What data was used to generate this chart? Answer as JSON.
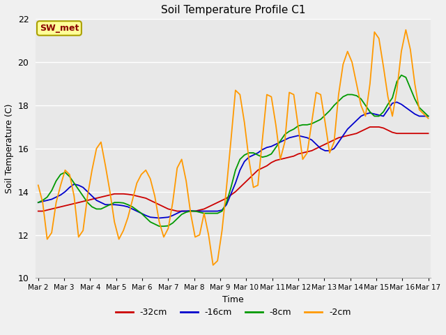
{
  "title": "Soil Temperature Profile C1",
  "xlabel": "Time",
  "ylabel": "Soil Temperature (C)",
  "ylim": [
    10,
    22
  ],
  "annotation": "SW_met",
  "plot_bg_color": "#e8e8e8",
  "fig_bg_color": "#f0f0f0",
  "legend_labels": [
    "-32cm",
    "-16cm",
    "-8cm",
    "-2cm"
  ],
  "legend_colors": [
    "#cc0000",
    "#0000cc",
    "#009900",
    "#ff9900"
  ],
  "xtick_labels": [
    "Mar 2",
    "Mar 3",
    "Mar 4",
    "Mar 5",
    "Mar 6",
    "Mar 7",
    "Mar 8",
    "Mar 9",
    "Mar 10",
    "Mar 11",
    "Mar 12",
    "Mar 13",
    "Mar 14",
    "Mar 15",
    "Mar 16",
    "Mar 17"
  ],
  "ytick_values": [
    10,
    12,
    14,
    16,
    18,
    20,
    22
  ],
  "series": {
    "minus32cm": [
      13.1,
      13.1,
      13.15,
      13.2,
      13.25,
      13.3,
      13.35,
      13.4,
      13.45,
      13.5,
      13.55,
      13.6,
      13.65,
      13.7,
      13.75,
      13.8,
      13.85,
      13.9,
      13.9,
      13.9,
      13.88,
      13.85,
      13.8,
      13.75,
      13.7,
      13.6,
      13.5,
      13.4,
      13.3,
      13.2,
      13.15,
      13.1,
      13.1,
      13.1,
      13.1,
      13.1,
      13.15,
      13.2,
      13.3,
      13.4,
      13.5,
      13.6,
      13.7,
      13.85,
      14.0,
      14.2,
      14.4,
      14.6,
      14.8,
      15.0,
      15.1,
      15.2,
      15.35,
      15.45,
      15.5,
      15.55,
      15.6,
      15.65,
      15.75,
      15.8,
      15.85,
      15.9,
      16.0,
      16.1,
      16.2,
      16.3,
      16.4,
      16.5,
      16.55,
      16.6,
      16.65,
      16.7,
      16.8,
      16.9,
      17.0,
      17.0,
      17.0,
      16.95,
      16.85,
      16.75,
      16.7,
      16.7,
      16.7,
      16.7,
      16.7,
      16.7,
      16.7,
      16.7
    ],
    "minus16cm": [
      13.5,
      13.55,
      13.6,
      13.65,
      13.75,
      13.85,
      14.0,
      14.2,
      14.35,
      14.3,
      14.2,
      14.0,
      13.8,
      13.6,
      13.5,
      13.4,
      13.4,
      13.4,
      13.38,
      13.35,
      13.3,
      13.2,
      13.1,
      13.0,
      12.9,
      12.82,
      12.8,
      12.78,
      12.8,
      12.82,
      12.9,
      13.0,
      13.1,
      13.1,
      13.12,
      13.1,
      13.1,
      13.1,
      13.1,
      13.1,
      13.1,
      13.15,
      13.4,
      13.9,
      14.4,
      15.0,
      15.4,
      15.6,
      15.7,
      15.8,
      15.95,
      16.05,
      16.1,
      16.2,
      16.3,
      16.4,
      16.5,
      16.55,
      16.6,
      16.55,
      16.5,
      16.4,
      16.2,
      16.0,
      15.9,
      15.9,
      16.0,
      16.3,
      16.6,
      16.9,
      17.1,
      17.3,
      17.5,
      17.6,
      17.65,
      17.6,
      17.55,
      17.5,
      17.8,
      18.1,
      18.15,
      18.05,
      17.9,
      17.75,
      17.6,
      17.5,
      17.5,
      17.5
    ],
    "minus8cm": [
      13.5,
      13.6,
      13.75,
      14.05,
      14.5,
      14.8,
      14.9,
      14.7,
      14.4,
      14.1,
      13.8,
      13.5,
      13.3,
      13.2,
      13.2,
      13.3,
      13.4,
      13.5,
      13.5,
      13.48,
      13.4,
      13.3,
      13.15,
      13.0,
      12.8,
      12.6,
      12.5,
      12.4,
      12.4,
      12.42,
      12.55,
      12.75,
      12.95,
      13.05,
      13.1,
      13.1,
      13.05,
      13.0,
      13.0,
      13.0,
      13.0,
      13.1,
      13.5,
      14.2,
      15.0,
      15.5,
      15.7,
      15.8,
      15.8,
      15.7,
      15.6,
      15.65,
      15.75,
      16.05,
      16.35,
      16.65,
      16.8,
      16.9,
      17.05,
      17.1,
      17.1,
      17.15,
      17.25,
      17.35,
      17.55,
      17.75,
      18.0,
      18.2,
      18.4,
      18.5,
      18.5,
      18.45,
      18.3,
      18.0,
      17.7,
      17.5,
      17.5,
      17.7,
      18.05,
      18.35,
      19.1,
      19.4,
      19.3,
      18.8,
      18.3,
      17.9,
      17.7,
      17.5
    ],
    "minus2cm": [
      14.3,
      13.5,
      11.8,
      12.1,
      13.5,
      14.3,
      15.0,
      14.8,
      13.8,
      11.9,
      12.2,
      13.8,
      15.0,
      16.0,
      16.3,
      15.2,
      14.0,
      12.6,
      11.8,
      12.2,
      12.8,
      13.6,
      14.4,
      14.8,
      15.0,
      14.6,
      13.8,
      12.6,
      11.9,
      12.3,
      13.5,
      15.1,
      15.5,
      14.5,
      13.0,
      11.9,
      12.0,
      13.0,
      12.0,
      10.6,
      10.8,
      12.2,
      14.2,
      16.4,
      18.7,
      18.5,
      17.2,
      15.5,
      14.2,
      14.3,
      16.4,
      18.5,
      18.4,
      17.1,
      15.5,
      16.3,
      18.6,
      18.5,
      17.0,
      15.5,
      15.8,
      17.2,
      18.6,
      18.5,
      17.2,
      15.8,
      16.3,
      18.5,
      19.9,
      20.5,
      20.0,
      19.0,
      18.0,
      17.5,
      19.0,
      21.4,
      21.1,
      19.8,
      18.4,
      17.5,
      18.7,
      20.5,
      21.5,
      20.6,
      19.0,
      17.8,
      17.6,
      17.4
    ]
  }
}
